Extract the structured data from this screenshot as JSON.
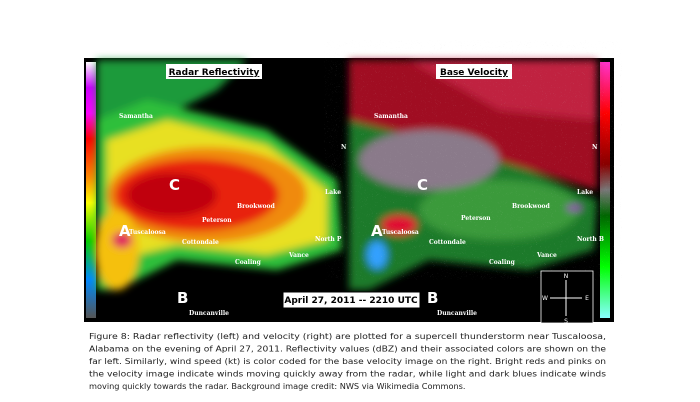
{
  "figure": {
    "panels": [
      {
        "title": "Radar Reflectivity",
        "labels": [
          "Samantha",
          "C",
          "Brookwood",
          "Peterson",
          "A",
          "Tuscaloosa",
          "Cottondale",
          "North P",
          "Vance",
          "Coaling",
          "Lake",
          "N",
          "B",
          "Duncanville"
        ]
      },
      {
        "title": "Base Velocity",
        "labels": [
          "Samantha",
          "C",
          "Brookwood",
          "Peterson",
          "A",
          "Tuscaloosa",
          "Cottondale",
          "North B",
          "Vance",
          "Coaling",
          "Lake",
          "N",
          "B",
          "Duncanville"
        ]
      }
    ],
    "timestamp": "April 27, 2011 -- 2210 UTC",
    "compass": {
      "n": "N",
      "w": "W",
      "e": "E",
      "s": "S"
    },
    "caption": [
      "Figure 8: Radar reflectivity (left) and velocity (right) are plotted for a supercell thunderstorm near Tuscaloosa,",
      "Alabama on the evening of April 27, 2011. Reflectivity values (dBZ) and their associated colors are shown on the",
      "far left. Similarly, wind speed (kt) is color coded for the base velocity image on the right. Bright reds and pinks on",
      "the velocity image indicate winds moving quickly away from the radar, while light and dark blues indicate winds",
      "moving quickly towards the radar. Background image credit: NWS via Wikimedia Commons."
    ]
  }
}
